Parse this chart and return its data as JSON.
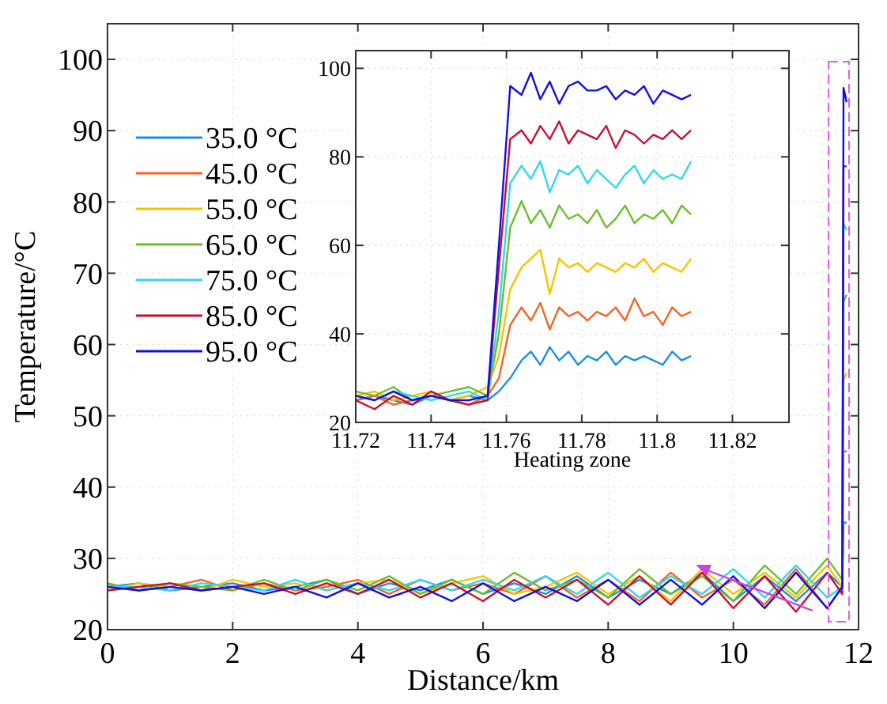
{
  "chart_data": [
    {
      "type": "line",
      "xlabel": "Distance/km",
      "ylabel": "Temperature/°C",
      "xlim": [
        0,
        12
      ],
      "ylim": [
        20,
        105
      ],
      "xticks": [
        0,
        2,
        4,
        6,
        8,
        10,
        12
      ],
      "yticks": [
        20,
        30,
        40,
        50,
        60,
        70,
        80,
        90,
        100
      ],
      "grid": true,
      "legend": "top left",
      "x": [
        0,
        0.5,
        1,
        1.5,
        2,
        2.5,
        3,
        3.5,
        4,
        4.5,
        5,
        5.5,
        6,
        6.5,
        7,
        7.5,
        8,
        8.5,
        9,
        9.5,
        10,
        10.5,
        11,
        11.5,
        11.74,
        11.76,
        11.81
      ],
      "series": [
        {
          "name": "35.0 °C",
          "color": "#1f8fe0",
          "values": [
            26,
            26.5,
            25.5,
            26,
            26.5,
            25.5,
            26,
            27,
            25,
            26.5,
            25.5,
            27,
            25,
            26.5,
            25,
            27.5,
            24.5,
            27,
            25,
            28,
            24,
            27.5,
            24,
            28,
            26,
            35,
            35
          ]
        },
        {
          "name": "45.0 °C",
          "color": "#f26522",
          "values": [
            26.5,
            25.5,
            26,
            27,
            25.5,
            26.5,
            25.5,
            26,
            27,
            25,
            27,
            25.5,
            26.5,
            25,
            27.5,
            24.5,
            27,
            24,
            28,
            24.5,
            27,
            23.5,
            28.5,
            23,
            26,
            45,
            45
          ]
        },
        {
          "name": "55.0 °C",
          "color": "#f5c400",
          "values": [
            25.5,
            26.5,
            26,
            25.5,
            27,
            26,
            26.5,
            25.5,
            26.5,
            27,
            25,
            26.5,
            27.5,
            25,
            26,
            28,
            25,
            27.5,
            24,
            28.5,
            25,
            28,
            24.5,
            29,
            26,
            55,
            56
          ]
        },
        {
          "name": "65.0 °C",
          "color": "#6cbf2a",
          "values": [
            26.4,
            25.5,
            26.5,
            26,
            25.5,
            27,
            25.5,
            27,
            25.5,
            27.5,
            25,
            27,
            25,
            28,
            25.5,
            27,
            24.5,
            28.5,
            25,
            27.5,
            24,
            29,
            25,
            30,
            27,
            66,
            67
          ]
        },
        {
          "name": "75.0 °C",
          "color": "#33d6f0",
          "values": [
            26,
            26,
            25.5,
            26.5,
            26,
            25.5,
            27,
            25.5,
            26.5,
            25.5,
            27,
            25.5,
            27,
            25.5,
            27.5,
            25,
            28,
            24.5,
            27.5,
            25,
            28.5,
            24.5,
            29,
            24.5,
            26,
            77,
            76
          ]
        },
        {
          "name": "85.0 °C",
          "color": "#c8102e",
          "values": [
            25.5,
            26,
            26.5,
            25.5,
            26,
            26.5,
            25,
            26.5,
            25,
            27,
            24.5,
            26.5,
            24,
            27,
            24.5,
            27,
            23.5,
            27.5,
            23.5,
            28,
            23,
            27.5,
            22.5,
            28,
            25,
            85,
            85
          ]
        },
        {
          "name": "95.0 °C",
          "color": "#1010e0",
          "values": [
            26,
            25.5,
            26,
            25.5,
            26,
            25,
            26,
            24.5,
            26.5,
            24.5,
            26,
            24,
            26.5,
            24,
            26,
            24,
            27,
            23.5,
            27,
            23.5,
            27.5,
            23,
            28,
            23,
            26,
            96,
            94
          ]
        }
      ]
    },
    {
      "type": "line",
      "xlabel": "Heating zone",
      "xlim": [
        11.72,
        11.835
      ],
      "ylim": [
        20,
        104
      ],
      "xticks": [
        11.72,
        11.74,
        11.76,
        11.78,
        11.8,
        11.82
      ],
      "yticks": [
        20,
        40,
        60,
        80,
        100
      ],
      "grid": true,
      "x": [
        11.72,
        11.725,
        11.73,
        11.735,
        11.74,
        11.745,
        11.75,
        11.755,
        11.758,
        11.761,
        11.764,
        11.7665,
        11.769,
        11.7715,
        11.774,
        11.7765,
        11.779,
        11.7815,
        11.784,
        11.7865,
        11.789,
        11.7915,
        11.794,
        11.7965,
        11.799,
        11.8015,
        11.804,
        11.8065,
        11.809
      ],
      "series": [
        {
          "color": "#1f8fe0",
          "values": [
            25,
            26,
            25,
            24,
            26,
            25,
            26,
            25,
            27,
            30,
            34,
            36,
            33,
            37,
            34,
            36,
            33,
            35,
            34,
            36,
            33,
            35,
            34,
            35,
            34,
            33,
            36,
            34,
            35
          ]
        },
        {
          "color": "#f26522",
          "values": [
            25,
            26,
            24,
            25,
            26,
            25,
            24,
            26,
            30,
            42,
            46,
            43,
            47,
            41,
            46,
            44,
            45,
            43,
            45,
            44,
            46,
            43,
            48,
            44,
            45,
            42,
            46,
            44,
            45
          ]
        },
        {
          "color": "#f5c400",
          "values": [
            26,
            27,
            25,
            26,
            27,
            25,
            26,
            28,
            35,
            50,
            55,
            57,
            59,
            49,
            57,
            55,
            56,
            54,
            56,
            55,
            54,
            56,
            55,
            57,
            54,
            56,
            55,
            54,
            57
          ]
        },
        {
          "color": "#6cbf2a",
          "values": [
            27,
            26,
            28,
            25,
            26,
            27,
            28,
            26,
            40,
            64,
            70,
            65,
            68,
            64,
            69,
            66,
            67,
            65,
            68,
            64,
            66,
            69,
            65,
            67,
            66,
            68,
            65,
            69,
            67
          ]
        },
        {
          "color": "#33d6f0",
          "values": [
            26,
            25,
            27,
            26,
            25,
            26,
            27,
            25,
            45,
            74,
            78,
            75,
            79,
            72,
            77,
            76,
            78,
            74,
            77,
            75,
            73,
            76,
            78,
            74,
            77,
            75,
            76,
            75,
            79
          ]
        },
        {
          "color": "#c8102e",
          "values": [
            25,
            23,
            26,
            24,
            27,
            25,
            24,
            25,
            55,
            84,
            86,
            83,
            87,
            84,
            88,
            83,
            86,
            85,
            84,
            87,
            82,
            86,
            85,
            83,
            85,
            84,
            86,
            84,
            86
          ]
        },
        {
          "color": "#1010e0",
          "values": [
            26,
            25,
            27,
            25,
            26,
            25,
            25,
            26,
            60,
            96,
            94,
            99,
            93,
            97,
            92,
            96,
            97,
            95,
            95,
            96,
            93,
            95,
            94,
            96,
            92,
            95,
            94,
            93,
            94
          ]
        }
      ]
    }
  ]
}
